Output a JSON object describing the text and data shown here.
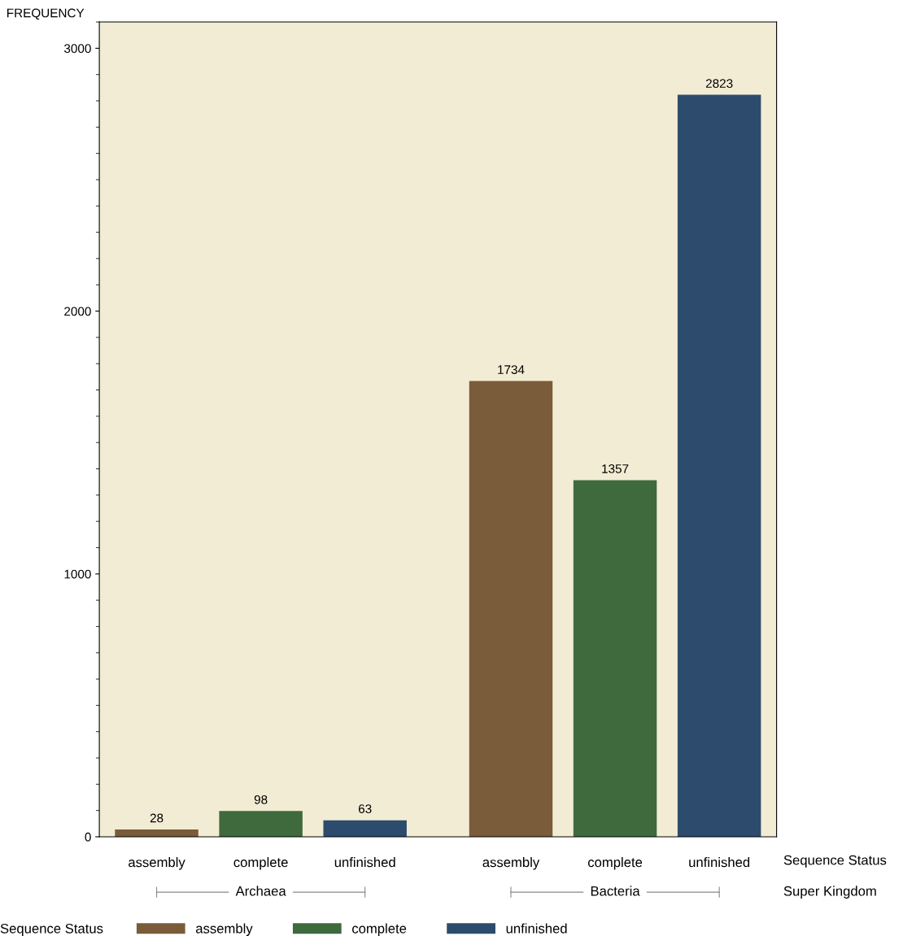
{
  "chart_data": {
    "type": "bar",
    "ylabel": "FREQUENCY",
    "categories": [
      "assembly",
      "complete",
      "unfinished",
      "assembly",
      "complete",
      "unfinished"
    ],
    "series": [
      {
        "name": "assembly",
        "color": "#7a5c3a",
        "values": [
          28,
          null,
          null,
          1734,
          null,
          null
        ]
      },
      {
        "name": "complete",
        "color": "#3f6a3e",
        "values": [
          null,
          98,
          null,
          null,
          1357,
          null
        ]
      },
      {
        "name": "unfinished",
        "color": "#2d4c6d",
        "values": [
          null,
          null,
          63,
          null,
          null,
          2823
        ]
      }
    ],
    "ylim": [
      0,
      3100
    ],
    "yticks": [
      0,
      1000,
      2000,
      3000
    ],
    "grid": false,
    "data_labels": true,
    "legend": "bottom",
    "legend_title": "Sequence Status",
    "annotations": [
      "Sequence Status",
      "Super Kingdom",
      "Archaea",
      "Bacteria"
    ]
  }
}
